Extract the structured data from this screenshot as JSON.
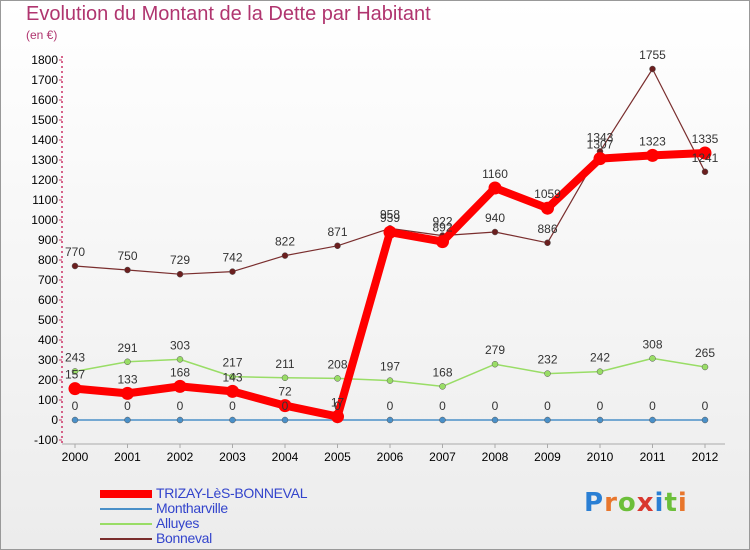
{
  "title": "Evolution du Montant de la Dette par Habitant",
  "subtitle": "(en €)",
  "logo": "Proxiti",
  "logo_colors": [
    "#2a7fd4",
    "#e8762c",
    "#6cbf3a",
    "#d9382f",
    "#2a7fd4",
    "#6cbf3a",
    "#e8762c"
  ],
  "chart_data": {
    "type": "line",
    "categories": [
      "2000",
      "2001",
      "2002",
      "2003",
      "2004",
      "2005",
      "2006",
      "2007",
      "2008",
      "2009",
      "2010",
      "2011",
      "2012"
    ],
    "ylim": [
      -100,
      1800
    ],
    "yticks": [
      -100,
      0,
      100,
      200,
      300,
      400,
      500,
      600,
      700,
      800,
      900,
      1000,
      1100,
      1200,
      1300,
      1400,
      1500,
      1600,
      1700,
      1800
    ],
    "grid": false,
    "legend_position": "bottom-left",
    "series": [
      {
        "name": "TRIZAY-LèS-BONNEVAL",
        "color": "#ff0000",
        "values": [
          157,
          133,
          168,
          143,
          72,
          17,
          939,
          892,
          1160,
          1059,
          1307,
          1323,
          1335
        ],
        "labels": [
          "157",
          "133",
          "168",
          "143",
          "72",
          "17",
          "939",
          "892",
          "1160",
          "1059",
          "1307",
          "1323",
          "1335"
        ]
      },
      {
        "name": "Montharville",
        "color": "#4a90c8",
        "values": [
          0,
          0,
          0,
          0,
          0,
          0,
          0,
          0,
          0,
          0,
          0,
          0,
          0
        ],
        "labels": [
          "0",
          "0",
          "0",
          "0",
          "0",
          "0",
          "0",
          "0",
          "0",
          "0",
          "0",
          "0",
          "0"
        ]
      },
      {
        "name": "Alluyes",
        "color": "#99dd66",
        "values": [
          243,
          291,
          303,
          217,
          211,
          208,
          197,
          168,
          279,
          232,
          242,
          308,
          265
        ],
        "labels": [
          "243",
          "291",
          "303",
          "217",
          "211",
          "208",
          "197",
          "168",
          "279",
          "232",
          "242",
          "308",
          "265"
        ]
      },
      {
        "name": "Bonneval",
        "color": "#7a2e2e",
        "values": [
          770,
          750,
          729,
          742,
          822,
          871,
          958,
          922,
          940,
          886,
          1343,
          1755,
          1241
        ],
        "labels": [
          "770",
          "750",
          "729",
          "742",
          "822",
          "871",
          "958",
          "922",
          "940",
          "886",
          "1343",
          "1755",
          "1241"
        ]
      }
    ]
  }
}
